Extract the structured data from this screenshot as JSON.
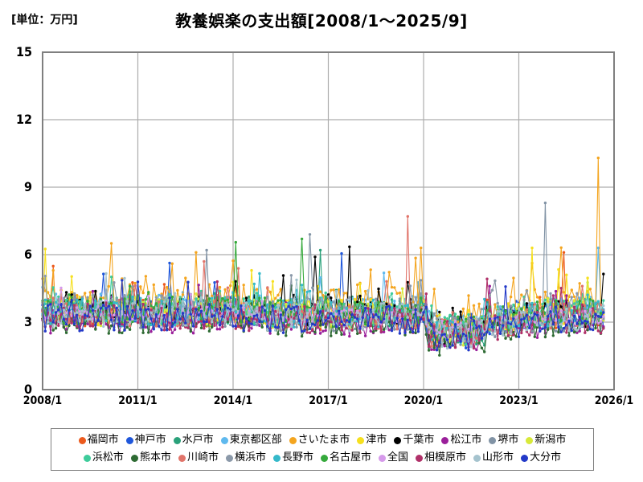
{
  "title": "教養娯楽の支出額[2008/1～2025/9]",
  "unit_label": "[単位：万円]",
  "chart_data": {
    "type": "line",
    "title": "教養娯楽の支出額[2008/1～2025/9]",
    "ylabel": "万円",
    "x_start": "2008/1",
    "x_end": "2025/9",
    "months": 213,
    "x_tick_labels": [
      "2008/1",
      "2011/1",
      "2014/1",
      "2017/1",
      "2020/1",
      "2023/1",
      "2026/1"
    ],
    "y_ticks": [
      0,
      3,
      6,
      9,
      12,
      15
    ],
    "ylim": [
      0,
      15
    ],
    "grid": true,
    "grid_color": "#adadad",
    "border_color": "#7f7f7f",
    "legend_position": "bottom",
    "marker": "circle",
    "typical_band_note": "most monthly values fluctuate between about 2 and 5; dip to about 1.4-3.5 during 2020-2021; occasional spikes 6-8",
    "covid_dip": {
      "from": "2020/3",
      "to": "2021/12",
      "approx_drop": 0.7
    },
    "series": [
      {
        "name": "福岡市",
        "color": "#EC5A1D",
        "base": 3.25,
        "amp": 0.62,
        "seed": 7,
        "spikes": [
          {
            "x": "2024/6",
            "v": 6.1
          }
        ]
      },
      {
        "name": "神戸市",
        "color": "#1F57DB",
        "base": 3.3,
        "amp": 0.62,
        "seed": 20,
        "spikes": [
          {
            "x": "2017/6",
            "v": 6.05
          }
        ]
      },
      {
        "name": "水戸市",
        "color": "#2AA17A",
        "base": 3.3,
        "amp": 0.65,
        "seed": 33,
        "spikes": [
          {
            "x": "2016/10",
            "v": 6.2
          }
        ]
      },
      {
        "name": "東京都区部",
        "color": "#5FB9EE",
        "base": 3.55,
        "amp": 0.62,
        "seed": 46,
        "spikes": [
          {
            "x": "2025/7",
            "v": 6.3
          }
        ]
      },
      {
        "name": "さいたま市",
        "color": "#F4A51F",
        "base": 3.8,
        "amp": 0.78,
        "up_chance": 0.12,
        "up_amp": 2.2,
        "seed": 59,
        "spikes": [
          {
            "x": "2010/3",
            "v": 6.5
          },
          {
            "x": "2019/12",
            "v": 6.3
          },
          {
            "x": "2025/7",
            "v": 10.3
          }
        ]
      },
      {
        "name": "津市",
        "color": "#F6E01E",
        "base": 3.4,
        "amp": 0.68,
        "up_chance": 0.08,
        "up_amp": 1.9,
        "seed": 72,
        "spikes": [
          {
            "x": "2008/2",
            "v": 6.25
          },
          {
            "x": "2014/8",
            "v": 5.3
          },
          {
            "x": "2023/6",
            "v": 6.3
          }
        ]
      },
      {
        "name": "千葉市",
        "color": "#000000",
        "base": 3.4,
        "amp": 0.62,
        "seed": 85,
        "spikes": [
          {
            "x": "2016/8",
            "v": 5.9
          },
          {
            "x": "2017/9",
            "v": 6.35
          }
        ]
      },
      {
        "name": "松江市",
        "color": "#9A1F9A",
        "base": 2.95,
        "amp": 0.58,
        "seed": 98,
        "spikes": []
      },
      {
        "name": "堺市",
        "color": "#8193A5",
        "base": 3.2,
        "amp": 0.62,
        "seed": 111,
        "spikes": [
          {
            "x": "2013/3",
            "v": 6.2
          },
          {
            "x": "2016/6",
            "v": 6.9
          },
          {
            "x": "2023/11",
            "v": 8.3
          }
        ]
      },
      {
        "name": "新潟市",
        "color": "#D8E93A",
        "base": 3.3,
        "amp": 0.62,
        "seed": 124,
        "spikes": []
      },
      {
        "name": "浜松市",
        "color": "#3ECC9B",
        "base": 3.4,
        "amp": 0.62,
        "seed": 137,
        "spikes": []
      },
      {
        "name": "熊本市",
        "color": "#2E6B33",
        "base": 2.95,
        "amp": 0.6,
        "seed": 150,
        "spikes": []
      },
      {
        "name": "川崎市",
        "color": "#E1746A",
        "base": 3.3,
        "amp": 0.62,
        "seed": 163,
        "spikes": [
          {
            "x": "2013/2",
            "v": 5.7
          },
          {
            "x": "2019/7",
            "v": 7.7
          }
        ]
      },
      {
        "name": "横浜市",
        "color": "#8B99A9",
        "base": 3.5,
        "amp": 0.62,
        "seed": 176,
        "spikes": []
      },
      {
        "name": "長野市",
        "color": "#35B9CA",
        "base": 3.35,
        "amp": 0.65,
        "seed": 189,
        "spikes": []
      },
      {
        "name": "名古屋市",
        "color": "#36A93C",
        "base": 3.4,
        "amp": 0.62,
        "seed": 202,
        "spikes": [
          {
            "x": "2014/2",
            "v": 6.55
          },
          {
            "x": "2016/3",
            "v": 6.7
          }
        ]
      },
      {
        "name": "全国",
        "color": "#D69AEB",
        "base": 3.25,
        "amp": 0.35,
        "up_chance": 0.01,
        "seed": 215,
        "spikes": []
      },
      {
        "name": "相模原市",
        "color": "#B03169",
        "base": 3.1,
        "amp": 0.6,
        "seed": 228,
        "spikes": []
      },
      {
        "name": "山形市",
        "color": "#A5C3CE",
        "base": 3.2,
        "amp": 0.62,
        "seed": 241,
        "spikes": []
      },
      {
        "name": "大分市",
        "color": "#2339C8",
        "base": 3.1,
        "amp": 0.62,
        "seed": 254,
        "spikes": []
      }
    ]
  },
  "legend": {
    "rows": [
      [
        "福岡市",
        "神戸市",
        "水戸市",
        "東京都区部",
        "さいたま市",
        "津市",
        "千葉市",
        "松江市",
        "堺市",
        "新潟市"
      ],
      [
        "浜松市",
        "熊本市",
        "川崎市",
        "横浜市",
        "長野市",
        "名古屋市",
        "全国",
        "相模原市",
        "山形市",
        "大分市"
      ]
    ]
  }
}
